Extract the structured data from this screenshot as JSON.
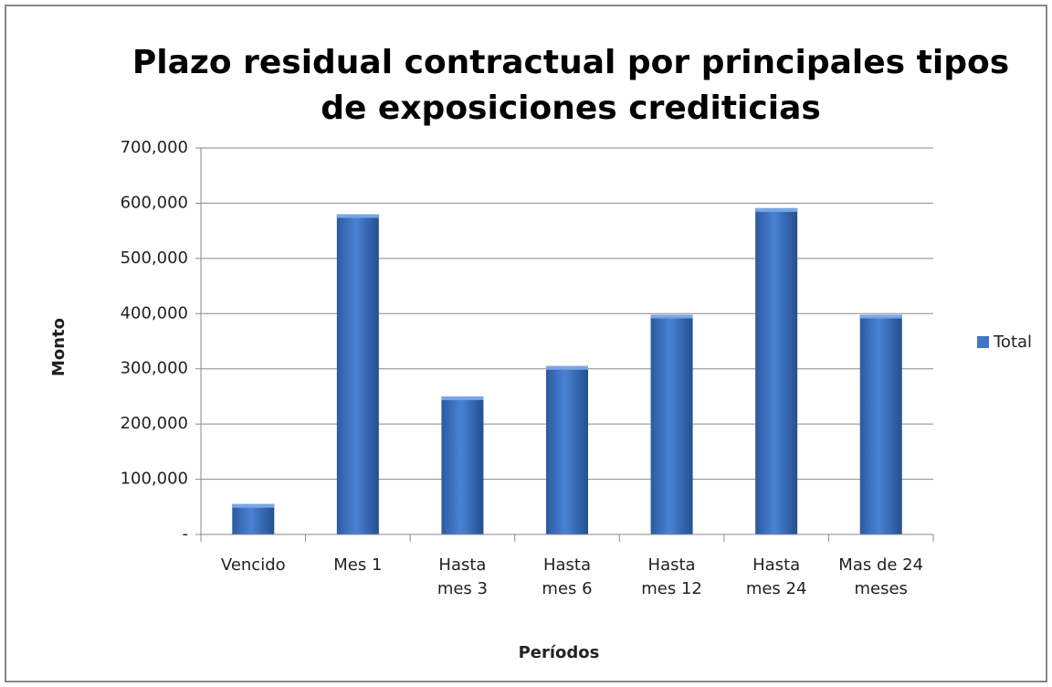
{
  "chart_data": {
    "type": "bar",
    "title": "Plazo residual contractual por principales  tipos\nde exposiciones crediticias",
    "x_label": "Períodos",
    "y_label": "Monto",
    "categories": [
      "Vencido",
      "Mes 1",
      "Hasta\nmes 3",
      "Hasta\nmes 6",
      "Hasta\nmes 12",
      "Hasta\nmes 24",
      "Mas de 24\nmeses"
    ],
    "series": [
      {
        "name": "Total",
        "color": "#3f75c4",
        "values": [
          55000,
          580000,
          250000,
          305000,
          398000,
          591000,
          398000
        ]
      }
    ],
    "ylim": [
      0,
      700000
    ],
    "yticks": [
      {
        "value": 0,
        "label": "-"
      },
      {
        "value": 100000,
        "label": "100,000"
      },
      {
        "value": 200000,
        "label": "200,000"
      },
      {
        "value": 300000,
        "label": "300,000"
      },
      {
        "value": 400000,
        "label": "400,000"
      },
      {
        "value": 500000,
        "label": "500,000"
      },
      {
        "value": 600000,
        "label": "600,000"
      },
      {
        "value": 700000,
        "label": "700,000"
      }
    ],
    "grid": true,
    "legend": "right"
  }
}
